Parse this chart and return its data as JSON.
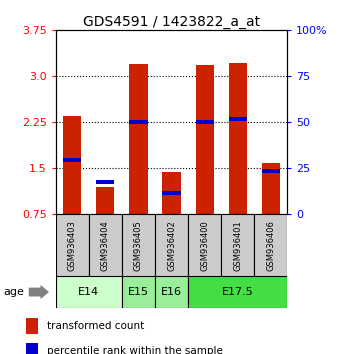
{
  "title": "GDS4591 / 1423822_a_at",
  "samples": [
    "GSM936403",
    "GSM936404",
    "GSM936405",
    "GSM936402",
    "GSM936400",
    "GSM936401",
    "GSM936406"
  ],
  "red_values": [
    2.35,
    1.2,
    3.2,
    1.43,
    3.18,
    3.22,
    1.58
  ],
  "blue_values": [
    1.63,
    1.27,
    2.25,
    1.1,
    2.25,
    2.3,
    1.45
  ],
  "age_groups": [
    {
      "label": "E14",
      "samples": [
        0,
        1
      ],
      "color": "#ccffcc"
    },
    {
      "label": "E15",
      "samples": [
        2
      ],
      "color": "#99ee99"
    },
    {
      "label": "E16",
      "samples": [
        3
      ],
      "color": "#99ee99"
    },
    {
      "label": "E17.5",
      "samples": [
        4,
        5,
        6
      ],
      "color": "#44dd44"
    }
  ],
  "ylim": [
    0.75,
    3.75
  ],
  "y_ticks_left": [
    0.75,
    1.5,
    2.25,
    3.0,
    3.75
  ],
  "y_ticks_right": [
    0,
    25,
    50,
    75,
    100
  ],
  "bar_color": "#cc2200",
  "marker_color": "#0000cc",
  "bar_width": 0.55,
  "title_fontsize": 10
}
